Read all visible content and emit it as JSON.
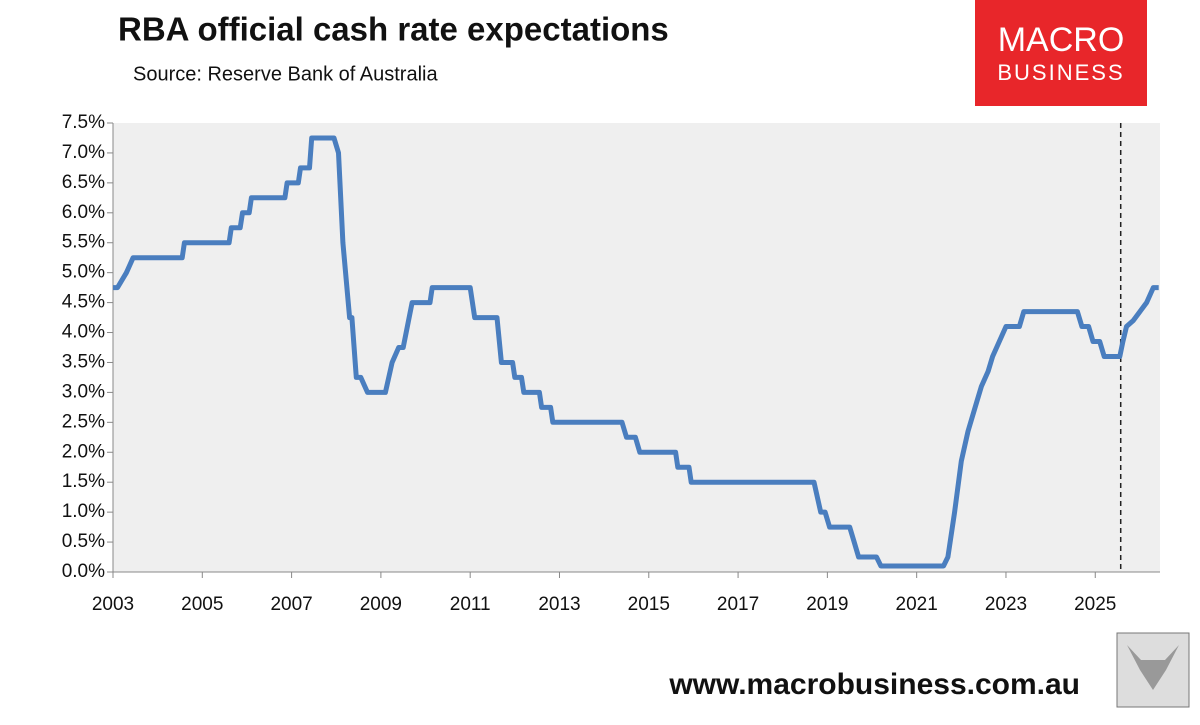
{
  "chart_data": {
    "type": "line",
    "title": "RBA official cash rate expectations",
    "subtitle": "Source: Reserve Bank of Australia",
    "x": [
      2003.0,
      2003.1,
      2003.3,
      2003.45,
      2004.55,
      2004.6,
      2005.6,
      2005.65,
      2005.85,
      2005.9,
      2006.05,
      2006.1,
      2006.85,
      2006.9,
      2007.15,
      2007.2,
      2007.4,
      2007.45,
      2007.95,
      2008.05,
      2008.15,
      2008.3,
      2008.35,
      2008.45,
      2008.55,
      2008.7,
      2009.1,
      2009.25,
      2009.4,
      2009.5,
      2009.7,
      2010.1,
      2010.15,
      2011.0,
      2011.1,
      2011.5,
      2011.6,
      2011.7,
      2011.95,
      2012.0,
      2012.15,
      2012.2,
      2012.55,
      2012.6,
      2012.8,
      2012.85,
      2014.4,
      2014.5,
      2014.7,
      2014.8,
      2015.6,
      2015.65,
      2015.9,
      2015.95,
      2018.7,
      2018.85,
      2018.95,
      2019.05,
      2019.1,
      2019.5,
      2019.6,
      2019.7,
      2020.1,
      2020.2,
      2021.6,
      2021.7,
      2021.85,
      2022.0,
      2022.15,
      2022.35,
      2022.45,
      2022.6,
      2022.7,
      2022.85,
      2023.0,
      2023.3,
      2023.4,
      2024.6,
      2024.7,
      2024.85,
      2024.95,
      2025.1,
      2025.2,
      2025.55,
      2025.62,
      2025.7,
      2025.85,
      2026.0,
      2026.15,
      2026.3,
      2026.42
    ],
    "values": [
      4.75,
      4.75,
      5.0,
      5.25,
      5.25,
      5.5,
      5.5,
      5.75,
      5.75,
      6.0,
      6.0,
      6.25,
      6.25,
      6.5,
      6.5,
      6.75,
      6.75,
      7.25,
      7.25,
      7.0,
      5.5,
      4.25,
      4.25,
      3.25,
      3.25,
      3.0,
      3.0,
      3.5,
      3.75,
      3.75,
      4.5,
      4.5,
      4.75,
      4.75,
      4.25,
      4.25,
      4.25,
      3.5,
      3.5,
      3.25,
      3.25,
      3.0,
      3.0,
      2.75,
      2.75,
      2.5,
      2.5,
      2.25,
      2.25,
      2.0,
      2.0,
      1.75,
      1.75,
      1.5,
      1.5,
      1.0,
      1.0,
      0.75,
      0.75,
      0.75,
      0.5,
      0.25,
      0.25,
      0.1,
      0.1,
      0.25,
      1.0,
      1.85,
      2.35,
      2.85,
      3.1,
      3.35,
      3.6,
      3.85,
      4.1,
      4.1,
      4.35,
      4.35,
      4.1,
      4.1,
      3.85,
      3.85,
      3.6,
      3.6,
      3.85,
      4.1,
      4.2,
      4.35,
      4.5,
      4.75,
      4.75
    ],
    "color": "#4a7ebf",
    "divider_x": 2025.57,
    "xlim": [
      2003,
      2026.45
    ],
    "xticks": [
      2003,
      2005,
      2007,
      2009,
      2011,
      2013,
      2015,
      2017,
      2019,
      2021,
      2023,
      2025
    ],
    "ylim": [
      0,
      7.5
    ],
    "yticks": [
      {
        "value": 0,
        "label": "0.0%"
      },
      {
        "value": 0.5,
        "label": "0.5%"
      },
      {
        "value": 1,
        "label": "1.0%"
      },
      {
        "value": 1.5,
        "label": "1.5%"
      },
      {
        "value": 2,
        "label": "2.0%"
      },
      {
        "value": 2.5,
        "label": "2.5%"
      },
      {
        "value": 3,
        "label": "3.0%"
      },
      {
        "value": 3.5,
        "label": "3.5%"
      },
      {
        "value": 4,
        "label": "4.0%"
      },
      {
        "value": 4.5,
        "label": "4.5%"
      },
      {
        "value": 5,
        "label": "5.0%"
      },
      {
        "value": 5.5,
        "label": "5.5%"
      },
      {
        "value": 6,
        "label": "6.0%"
      },
      {
        "value": 6.5,
        "label": "6.5%"
      },
      {
        "value": 7,
        "label": "7.0%"
      },
      {
        "value": 7.5,
        "label": "7.5%"
      }
    ]
  },
  "branding": {
    "logo_top": "MACRO",
    "logo_bottom": "BUSINESS",
    "website": "www.macrobusiness.com.au"
  }
}
